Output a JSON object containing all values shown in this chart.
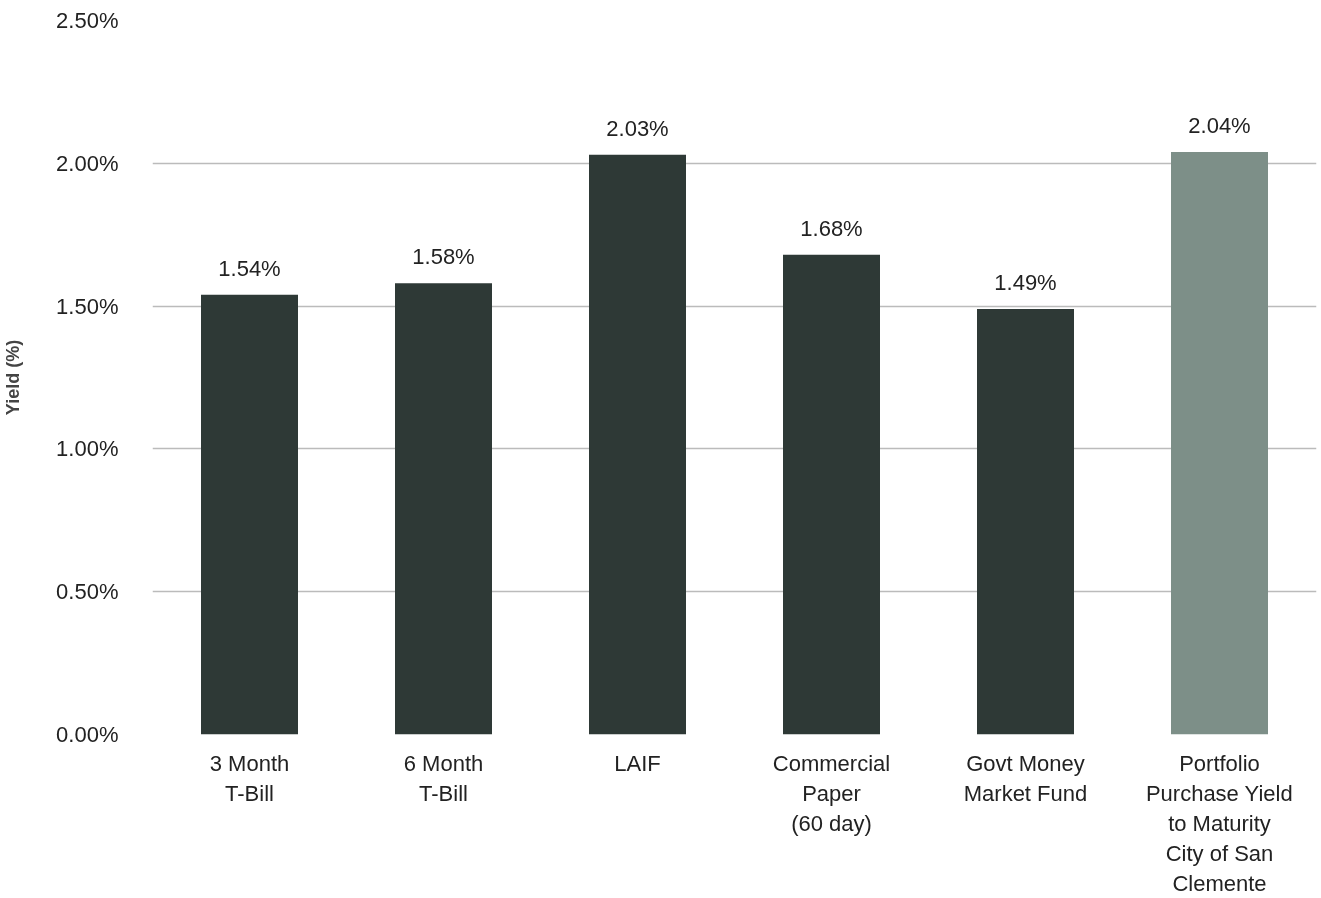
{
  "chart_data": {
    "type": "bar",
    "ylabel": "Yield (%)",
    "categories": [
      "3 Month\nT-Bill",
      "6 Month\nT-Bill",
      "LAIF",
      "Commercial\nPaper\n(60 day)",
      "Govt Money\nMarket Fund",
      "Portfolio\nPurchase Yield\nto Maturity\nCity of San\nClemente"
    ],
    "values": [
      1.54,
      1.58,
      2.03,
      1.68,
      1.49,
      2.04
    ],
    "colors": [
      "#2e3936",
      "#2e3936",
      "#2e3936",
      "#2e3936",
      "#2e3936",
      "#7d8f88"
    ],
    "value_labels": [
      "1.54%",
      "1.58%",
      "2.03%",
      "1.68%",
      "1.49%",
      "2.04%"
    ],
    "ylim": [
      0,
      2.5
    ],
    "yticks": [
      {
        "value": 0,
        "label": "0.00%"
      },
      {
        "value": 0.5,
        "label": "0.50%"
      },
      {
        "value": 1,
        "label": "1.00%"
      },
      {
        "value": 1.5,
        "label": "1.50%"
      },
      {
        "value": 2,
        "label": "2.00%"
      },
      {
        "value": 2.5,
        "label": "2.50%"
      }
    ],
    "grid": "y"
  }
}
